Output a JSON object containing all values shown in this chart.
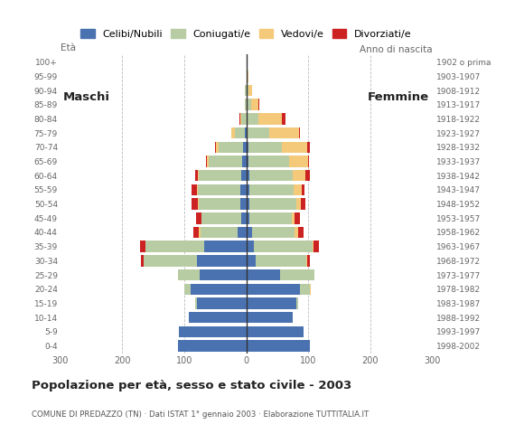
{
  "age_groups": [
    "0-4",
    "5-9",
    "10-14",
    "15-19",
    "20-24",
    "25-29",
    "30-34",
    "35-39",
    "40-44",
    "45-49",
    "50-54",
    "55-59",
    "60-64",
    "65-69",
    "70-74",
    "75-79",
    "80-84",
    "85-89",
    "90-94",
    "95-99",
    "100+"
  ],
  "birth_years": [
    "1998-2002",
    "1993-1997",
    "1988-1992",
    "1983-1987",
    "1978-1982",
    "1973-1977",
    "1968-1972",
    "1963-1967",
    "1958-1962",
    "1953-1957",
    "1948-1952",
    "1943-1947",
    "1938-1942",
    "1933-1937",
    "1928-1932",
    "1923-1927",
    "1918-1922",
    "1913-1917",
    "1908-1912",
    "1903-1907",
    "1902 o prima"
  ],
  "male_celibe": [
    110,
    108,
    92,
    80,
    90,
    75,
    80,
    68,
    14,
    8,
    9,
    10,
    8,
    7,
    5,
    3,
    0,
    0,
    0,
    0,
    0
  ],
  "male_coniugato": [
    0,
    0,
    0,
    2,
    10,
    35,
    85,
    95,
    60,
    64,
    68,
    68,
    68,
    53,
    40,
    16,
    8,
    3,
    2,
    0,
    0
  ],
  "male_vedovo": [
    0,
    0,
    0,
    0,
    0,
    0,
    0,
    0,
    2,
    0,
    1,
    2,
    2,
    3,
    4,
    5,
    2,
    0,
    0,
    0,
    0
  ],
  "male_divorziato": [
    0,
    0,
    0,
    0,
    0,
    0,
    5,
    8,
    10,
    9,
    10,
    8,
    5,
    2,
    2,
    0,
    1,
    0,
    0,
    0,
    0
  ],
  "female_nubile": [
    103,
    92,
    75,
    80,
    87,
    55,
    15,
    12,
    10,
    5,
    5,
    5,
    5,
    4,
    3,
    2,
    0,
    0,
    0,
    0,
    0
  ],
  "female_coniugata": [
    0,
    0,
    0,
    3,
    15,
    55,
    82,
    95,
    68,
    68,
    75,
    72,
    70,
    65,
    55,
    35,
    20,
    8,
    4,
    1,
    0
  ],
  "female_vedova": [
    0,
    0,
    0,
    0,
    2,
    0,
    1,
    2,
    5,
    5,
    8,
    12,
    20,
    30,
    40,
    48,
    38,
    12,
    6,
    2,
    0
  ],
  "female_divorziata": [
    0,
    0,
    0,
    0,
    0,
    0,
    5,
    8,
    10,
    8,
    8,
    5,
    8,
    2,
    5,
    2,
    5,
    1,
    0,
    0,
    0
  ],
  "color_celibe": "#4a72b0",
  "color_coniugato": "#b8cca4",
  "color_vedovo": "#f5c97a",
  "color_divorziato": "#cc2222",
  "xlim": 300,
  "title": "Popolazione per età, sesso e stato civile - 2003",
  "subtitle": "COMUNE DI PREDAZZO (TN) · Dati ISTAT 1° gennaio 2003 · Elaborazione TUTTITALIA.IT",
  "legend_labels": [
    "Celibi/Nubili",
    "Coniugati/e",
    "Vedovi/e",
    "Divorziati/e"
  ],
  "bg_color": "#ffffff",
  "grid_color": "#bbbbbb"
}
